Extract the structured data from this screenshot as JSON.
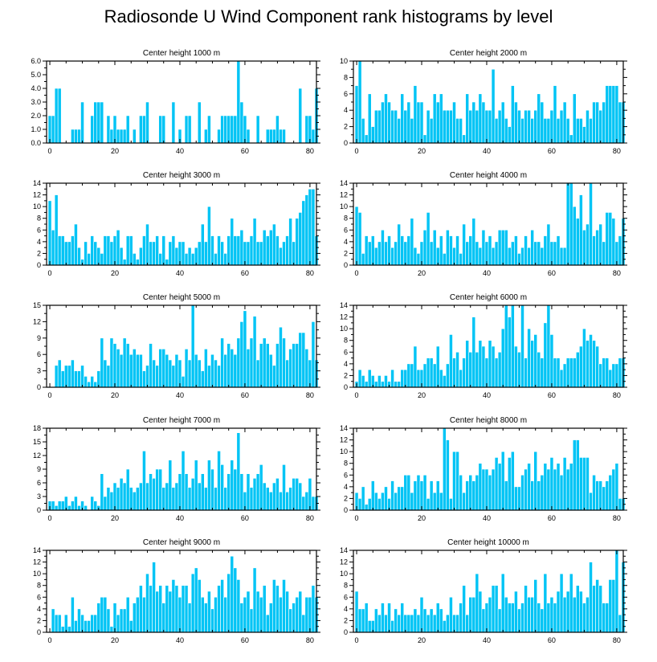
{
  "title": "Radiosonde U Wind Component rank histograms by level",
  "colors": {
    "bar": "#00c4f5",
    "bar_edge": "#ffffff",
    "axis": "#000000"
  },
  "chart_data": [
    {
      "type": "bar",
      "title": "Center height 1000 m",
      "xlim": [
        -1,
        82
      ],
      "ylim": [
        0,
        6
      ],
      "xticks": [
        0,
        20,
        40,
        60,
        80
      ],
      "xtick_labels": [
        "0",
        "20",
        "40",
        "60",
        "80"
      ],
      "yticks": [
        0,
        1,
        2,
        3,
        4,
        5,
        6
      ],
      "ytick_labels": [
        "0.0",
        "1.0",
        "2.0",
        "3.0",
        "4.0",
        "5.0",
        "6.0"
      ],
      "values": [
        2,
        2,
        4,
        4,
        0,
        0,
        0,
        1,
        1,
        1,
        3,
        0,
        0,
        2,
        3,
        3,
        3,
        0,
        2,
        1,
        2,
        1,
        1,
        1,
        2,
        0,
        1,
        0,
        2,
        2,
        3,
        0,
        0,
        0,
        2,
        2,
        0,
        0,
        3,
        0,
        1,
        0,
        2,
        2,
        0,
        0,
        3,
        0,
        1,
        2,
        0,
        0,
        1,
        2,
        2,
        2,
        2,
        2,
        6,
        3,
        2,
        1,
        0,
        0,
        2,
        0,
        0,
        1,
        1,
        1,
        2,
        1,
        1,
        0,
        0,
        0,
        0,
        4,
        0,
        2,
        2,
        1,
        4
      ]
    },
    {
      "type": "bar",
      "title": "Center height 2000 m",
      "xlim": [
        -1,
        82
      ],
      "ylim": [
        0,
        10
      ],
      "xticks": [
        0,
        20,
        40,
        60,
        80
      ],
      "xtick_labels": [
        "0",
        "20",
        "40",
        "60",
        "80"
      ],
      "yticks": [
        0,
        2,
        4,
        6,
        8,
        10
      ],
      "ytick_labels": [
        "0",
        "2",
        "4",
        "6",
        "8",
        "10"
      ],
      "values": [
        7,
        10,
        3,
        1,
        6,
        2,
        4,
        4,
        5,
        6,
        5,
        4,
        4,
        3,
        6,
        4,
        5,
        3,
        7,
        5,
        5,
        1,
        4,
        3,
        6,
        5,
        6,
        4,
        4,
        4,
        5,
        3,
        3,
        1,
        6,
        4,
        5,
        4,
        6,
        5,
        4,
        4,
        9,
        3,
        4,
        5,
        3,
        2,
        7,
        5,
        4,
        3,
        4,
        4,
        3,
        4,
        6,
        5,
        3,
        3,
        4,
        7,
        3,
        4,
        5,
        3,
        1,
        6,
        3,
        3,
        2,
        4,
        3,
        5,
        5,
        4,
        5,
        7,
        7,
        7,
        7,
        5,
        5
      ]
    },
    {
      "type": "bar",
      "title": "Center height 3000 m",
      "xlim": [
        -1,
        82
      ],
      "ylim": [
        0,
        14
      ],
      "xticks": [
        0,
        20,
        40,
        60,
        80
      ],
      "xtick_labels": [
        "0",
        "20",
        "40",
        "60",
        "80"
      ],
      "yticks": [
        0,
        2,
        4,
        6,
        8,
        10,
        12,
        14
      ],
      "ytick_labels": [
        "0",
        "2",
        "4",
        "6",
        "8",
        "10",
        "12",
        "14"
      ],
      "values": [
        11,
        6,
        12,
        5,
        5,
        4,
        4,
        5,
        7,
        3,
        1,
        4,
        2,
        5,
        4,
        3,
        2,
        5,
        5,
        4,
        5,
        6,
        3,
        1,
        5,
        5,
        2,
        1,
        3,
        5,
        7,
        4,
        4,
        5,
        2,
        5,
        1,
        4,
        5,
        3,
        4,
        4,
        2,
        3,
        2,
        3,
        4,
        7,
        4,
        10,
        5,
        2,
        5,
        4,
        2,
        5,
        8,
        5,
        5,
        6,
        4,
        4,
        5,
        8,
        4,
        4,
        6,
        5,
        6,
        7,
        5,
        3,
        4,
        5,
        8,
        4,
        8,
        9,
        11,
        12,
        13,
        13,
        5
      ]
    },
    {
      "type": "bar",
      "title": "Center height 4000 m",
      "xlim": [
        -1,
        82
      ],
      "ylim": [
        0,
        14
      ],
      "xticks": [
        0,
        20,
        40,
        60,
        80
      ],
      "xtick_labels": [
        "0",
        "20",
        "40",
        "60",
        "80"
      ],
      "yticks": [
        0,
        2,
        4,
        6,
        8,
        10,
        12,
        14
      ],
      "ytick_labels": [
        "0",
        "2",
        "4",
        "6",
        "8",
        "10",
        "12",
        "14"
      ],
      "values": [
        10,
        9,
        2,
        5,
        4,
        5,
        3,
        4,
        6,
        4,
        5,
        3,
        4,
        7,
        5,
        4,
        5,
        8,
        3,
        2,
        4,
        6,
        9,
        4,
        6,
        3,
        5,
        2,
        6,
        5,
        3,
        5,
        2,
        7,
        4,
        5,
        8,
        4,
        3,
        6,
        4,
        5,
        3,
        4,
        6,
        6,
        6,
        3,
        4,
        5,
        2,
        3,
        5,
        3,
        6,
        4,
        4,
        3,
        5,
        7,
        4,
        4,
        5,
        3,
        3,
        14,
        14,
        10,
        8,
        12,
        6,
        7,
        14,
        5,
        6,
        7,
        4,
        9,
        9,
        8,
        4,
        5,
        8
      ]
    },
    {
      "type": "bar",
      "title": "Center height 5000 m",
      "xlim": [
        -1,
        82
      ],
      "ylim": [
        0,
        15
      ],
      "xticks": [
        0,
        20,
        40,
        60,
        80
      ],
      "xtick_labels": [
        "0",
        "20",
        "40",
        "60",
        "80"
      ],
      "yticks": [
        0,
        3,
        6,
        9,
        12,
        15
      ],
      "ytick_labels": [
        "0",
        "3",
        "6",
        "9",
        "12",
        "15"
      ],
      "values": [
        0,
        0,
        4,
        5,
        3,
        4,
        4,
        5,
        3,
        3,
        4,
        2,
        1,
        2,
        1,
        3,
        9,
        5,
        4,
        9,
        8,
        7,
        6,
        9,
        8,
        6,
        7,
        6,
        6,
        3,
        4,
        8,
        5,
        4,
        7,
        7,
        6,
        5,
        4,
        6,
        5,
        2,
        7,
        5,
        15,
        6,
        5,
        3,
        7,
        4,
        6,
        5,
        4,
        9,
        6,
        8,
        7,
        6,
        9,
        12,
        14,
        7,
        9,
        13,
        5,
        8,
        9,
        8,
        6,
        4,
        8,
        11,
        9,
        5,
        7,
        8,
        8,
        10,
        10,
        7,
        5,
        12,
        5
      ]
    },
    {
      "type": "bar",
      "title": "Center height 6000 m",
      "xlim": [
        -1,
        82
      ],
      "ylim": [
        0,
        14
      ],
      "xticks": [
        0,
        20,
        40,
        60,
        80
      ],
      "xtick_labels": [
        "0",
        "20",
        "40",
        "60",
        "80"
      ],
      "yticks": [
        0,
        2,
        4,
        6,
        8,
        10,
        12,
        14
      ],
      "ytick_labels": [
        "0",
        "2",
        "4",
        "6",
        "8",
        "10",
        "12",
        "14"
      ],
      "values": [
        1,
        3,
        2,
        1,
        3,
        2,
        1,
        2,
        1,
        2,
        1,
        3,
        1,
        1,
        3,
        3,
        4,
        4,
        7,
        3,
        3,
        4,
        5,
        5,
        4,
        7,
        3,
        2,
        4,
        9,
        5,
        6,
        3,
        5,
        8,
        6,
        12,
        6,
        8,
        7,
        5,
        8,
        7,
        5,
        6,
        10,
        14,
        12,
        14,
        7,
        6,
        14,
        5,
        10,
        8,
        9,
        6,
        5,
        11,
        14,
        9,
        5,
        5,
        3,
        4,
        5,
        5,
        5,
        6,
        7,
        10,
        8,
        9,
        8,
        7,
        4,
        5,
        5,
        3,
        4,
        4,
        5,
        5
      ]
    },
    {
      "type": "bar",
      "title": "Center height 7000 m",
      "xlim": [
        -1,
        82
      ],
      "ylim": [
        0,
        18
      ],
      "xticks": [
        0,
        20,
        40,
        60,
        80
      ],
      "xtick_labels": [
        "0",
        "20",
        "40",
        "60",
        "80"
      ],
      "yticks": [
        0,
        3,
        6,
        9,
        12,
        15,
        18
      ],
      "ytick_labels": [
        "0",
        "3",
        "6",
        "9",
        "12",
        "15",
        "18"
      ],
      "values": [
        2,
        2,
        1,
        2,
        2,
        3,
        1,
        2,
        3,
        1,
        2,
        1,
        0,
        3,
        2,
        1,
        8,
        3,
        5,
        4,
        6,
        5,
        7,
        6,
        9,
        5,
        4,
        5,
        6,
        13,
        6,
        8,
        7,
        9,
        9,
        5,
        6,
        11,
        5,
        6,
        8,
        13,
        8,
        5,
        7,
        11,
        6,
        8,
        5,
        11,
        9,
        5,
        13,
        10,
        5,
        8,
        11,
        9,
        17,
        8,
        4,
        8,
        5,
        7,
        8,
        10,
        6,
        5,
        4,
        6,
        7,
        4,
        10,
        4,
        5,
        7,
        7,
        6,
        3,
        4,
        7,
        3,
        3
      ]
    },
    {
      "type": "bar",
      "title": "Center height 8000 m",
      "xlim": [
        -1,
        82
      ],
      "ylim": [
        0,
        14
      ],
      "xticks": [
        0,
        20,
        40,
        60,
        80
      ],
      "xtick_labels": [
        "0",
        "20",
        "40",
        "60",
        "80"
      ],
      "yticks": [
        0,
        2,
        4,
        6,
        8,
        10,
        12,
        14
      ],
      "ytick_labels": [
        "0",
        "2",
        "4",
        "6",
        "8",
        "10",
        "12",
        "14"
      ],
      "values": [
        3,
        2,
        4,
        1,
        2,
        5,
        3,
        2,
        3,
        4,
        2,
        5,
        3,
        4,
        4,
        6,
        6,
        3,
        5,
        6,
        5,
        6,
        2,
        5,
        3,
        5,
        3,
        14,
        12,
        2,
        10,
        10,
        6,
        3,
        5,
        6,
        5,
        6,
        8,
        7,
        7,
        6,
        7,
        9,
        8,
        10,
        5,
        9,
        10,
        4,
        4,
        6,
        7,
        8,
        5,
        10,
        5,
        6,
        8,
        7,
        9,
        7,
        8,
        6,
        9,
        7,
        8,
        12,
        12,
        9,
        9,
        9,
        3,
        6,
        5,
        5,
        4,
        5,
        6,
        7,
        8,
        2,
        2
      ]
    },
    {
      "type": "bar",
      "title": "Center height 9000 m",
      "xlim": [
        -1,
        82
      ],
      "ylim": [
        0,
        14
      ],
      "xticks": [
        0,
        20,
        40,
        60,
        80
      ],
      "xtick_labels": [
        "0",
        "20",
        "40",
        "60",
        "80"
      ],
      "yticks": [
        0,
        2,
        4,
        6,
        8,
        10,
        12,
        14
      ],
      "ytick_labels": [
        "0",
        "2",
        "4",
        "6",
        "8",
        "10",
        "12",
        "14"
      ],
      "values": [
        0,
        4,
        3,
        3,
        1,
        3,
        1,
        6,
        2,
        4,
        3,
        2,
        2,
        3,
        3,
        5,
        6,
        6,
        4,
        1,
        5,
        3,
        4,
        4,
        6,
        2,
        5,
        6,
        8,
        6,
        10,
        8,
        12,
        7,
        8,
        5,
        8,
        7,
        9,
        8,
        6,
        8,
        8,
        5,
        10,
        11,
        9,
        6,
        5,
        7,
        4,
        6,
        8,
        9,
        6,
        10,
        13,
        11,
        9,
        5,
        6,
        7,
        4,
        11,
        7,
        6,
        8,
        3,
        5,
        9,
        8,
        6,
        9,
        7,
        4,
        5,
        6,
        7,
        3,
        6,
        6,
        8,
        6
      ]
    },
    {
      "type": "bar",
      "title": "Center height 10000 m",
      "xlim": [
        -1,
        82
      ],
      "ylim": [
        0,
        14
      ],
      "xticks": [
        0,
        20,
        40,
        60,
        80
      ],
      "xtick_labels": [
        "0",
        "20",
        "40",
        "60",
        "80"
      ],
      "yticks": [
        0,
        2,
        4,
        6,
        8,
        10,
        12,
        14
      ],
      "ytick_labels": [
        "0",
        "2",
        "4",
        "6",
        "8",
        "10",
        "12",
        "14"
      ],
      "values": [
        7,
        4,
        4,
        5,
        2,
        2,
        4,
        3,
        5,
        3,
        5,
        2,
        4,
        3,
        5,
        3,
        3,
        3,
        4,
        3,
        6,
        4,
        3,
        4,
        3,
        5,
        4,
        2,
        3,
        6,
        3,
        3,
        5,
        8,
        3,
        6,
        6,
        10,
        7,
        4,
        5,
        6,
        8,
        8,
        4,
        10,
        6,
        5,
        5,
        7,
        4,
        5,
        8,
        6,
        6,
        9,
        5,
        4,
        10,
        5,
        6,
        5,
        7,
        10,
        6,
        7,
        10,
        6,
        8,
        7,
        5,
        6,
        12,
        8,
        9,
        8,
        5,
        5,
        9,
        9,
        14,
        3,
        12
      ]
    }
  ]
}
